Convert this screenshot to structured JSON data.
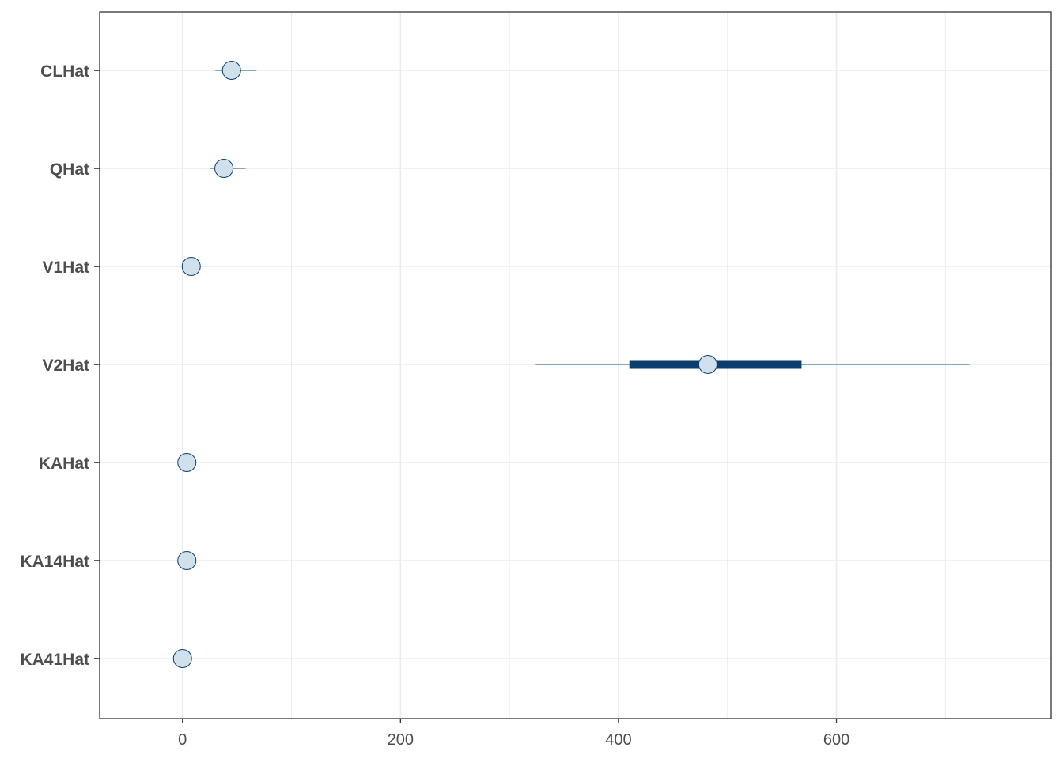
{
  "chart_data": {
    "type": "interval",
    "categories": [
      "CLHat",
      "QHat",
      "V1Hat",
      "V2Hat",
      "KAHat",
      "KA14Hat",
      "KA41Hat"
    ],
    "estimates": [
      45,
      38,
      8,
      482,
      4,
      4,
      0
    ],
    "inner_interval": [
      [
        45,
        45
      ],
      [
        38,
        38
      ],
      [
        8,
        8
      ],
      [
        410,
        568
      ],
      [
        4,
        4
      ],
      [
        4,
        4
      ],
      [
        0,
        0
      ]
    ],
    "outer_interval": [
      [
        30,
        68
      ],
      [
        25,
        58
      ],
      [
        8,
        8
      ],
      [
        324,
        722
      ],
      [
        4,
        4
      ],
      [
        4,
        4
      ],
      [
        0,
        0
      ]
    ],
    "x_ticks": [
      "0",
      "200",
      "400",
      "600"
    ],
    "x_tick_values": [
      0,
      200,
      400,
      600
    ],
    "xlim": [
      -76,
      797
    ],
    "grid": true,
    "colors": {
      "outer_line": "#5b91b0",
      "inner_line": "#0b3d6e",
      "point_fill": "#d1e1ec",
      "point_stroke": "#0b3d6e",
      "grid": "#ebebeb",
      "panel_border": "#333333",
      "text": "#4d4d4d"
    }
  }
}
